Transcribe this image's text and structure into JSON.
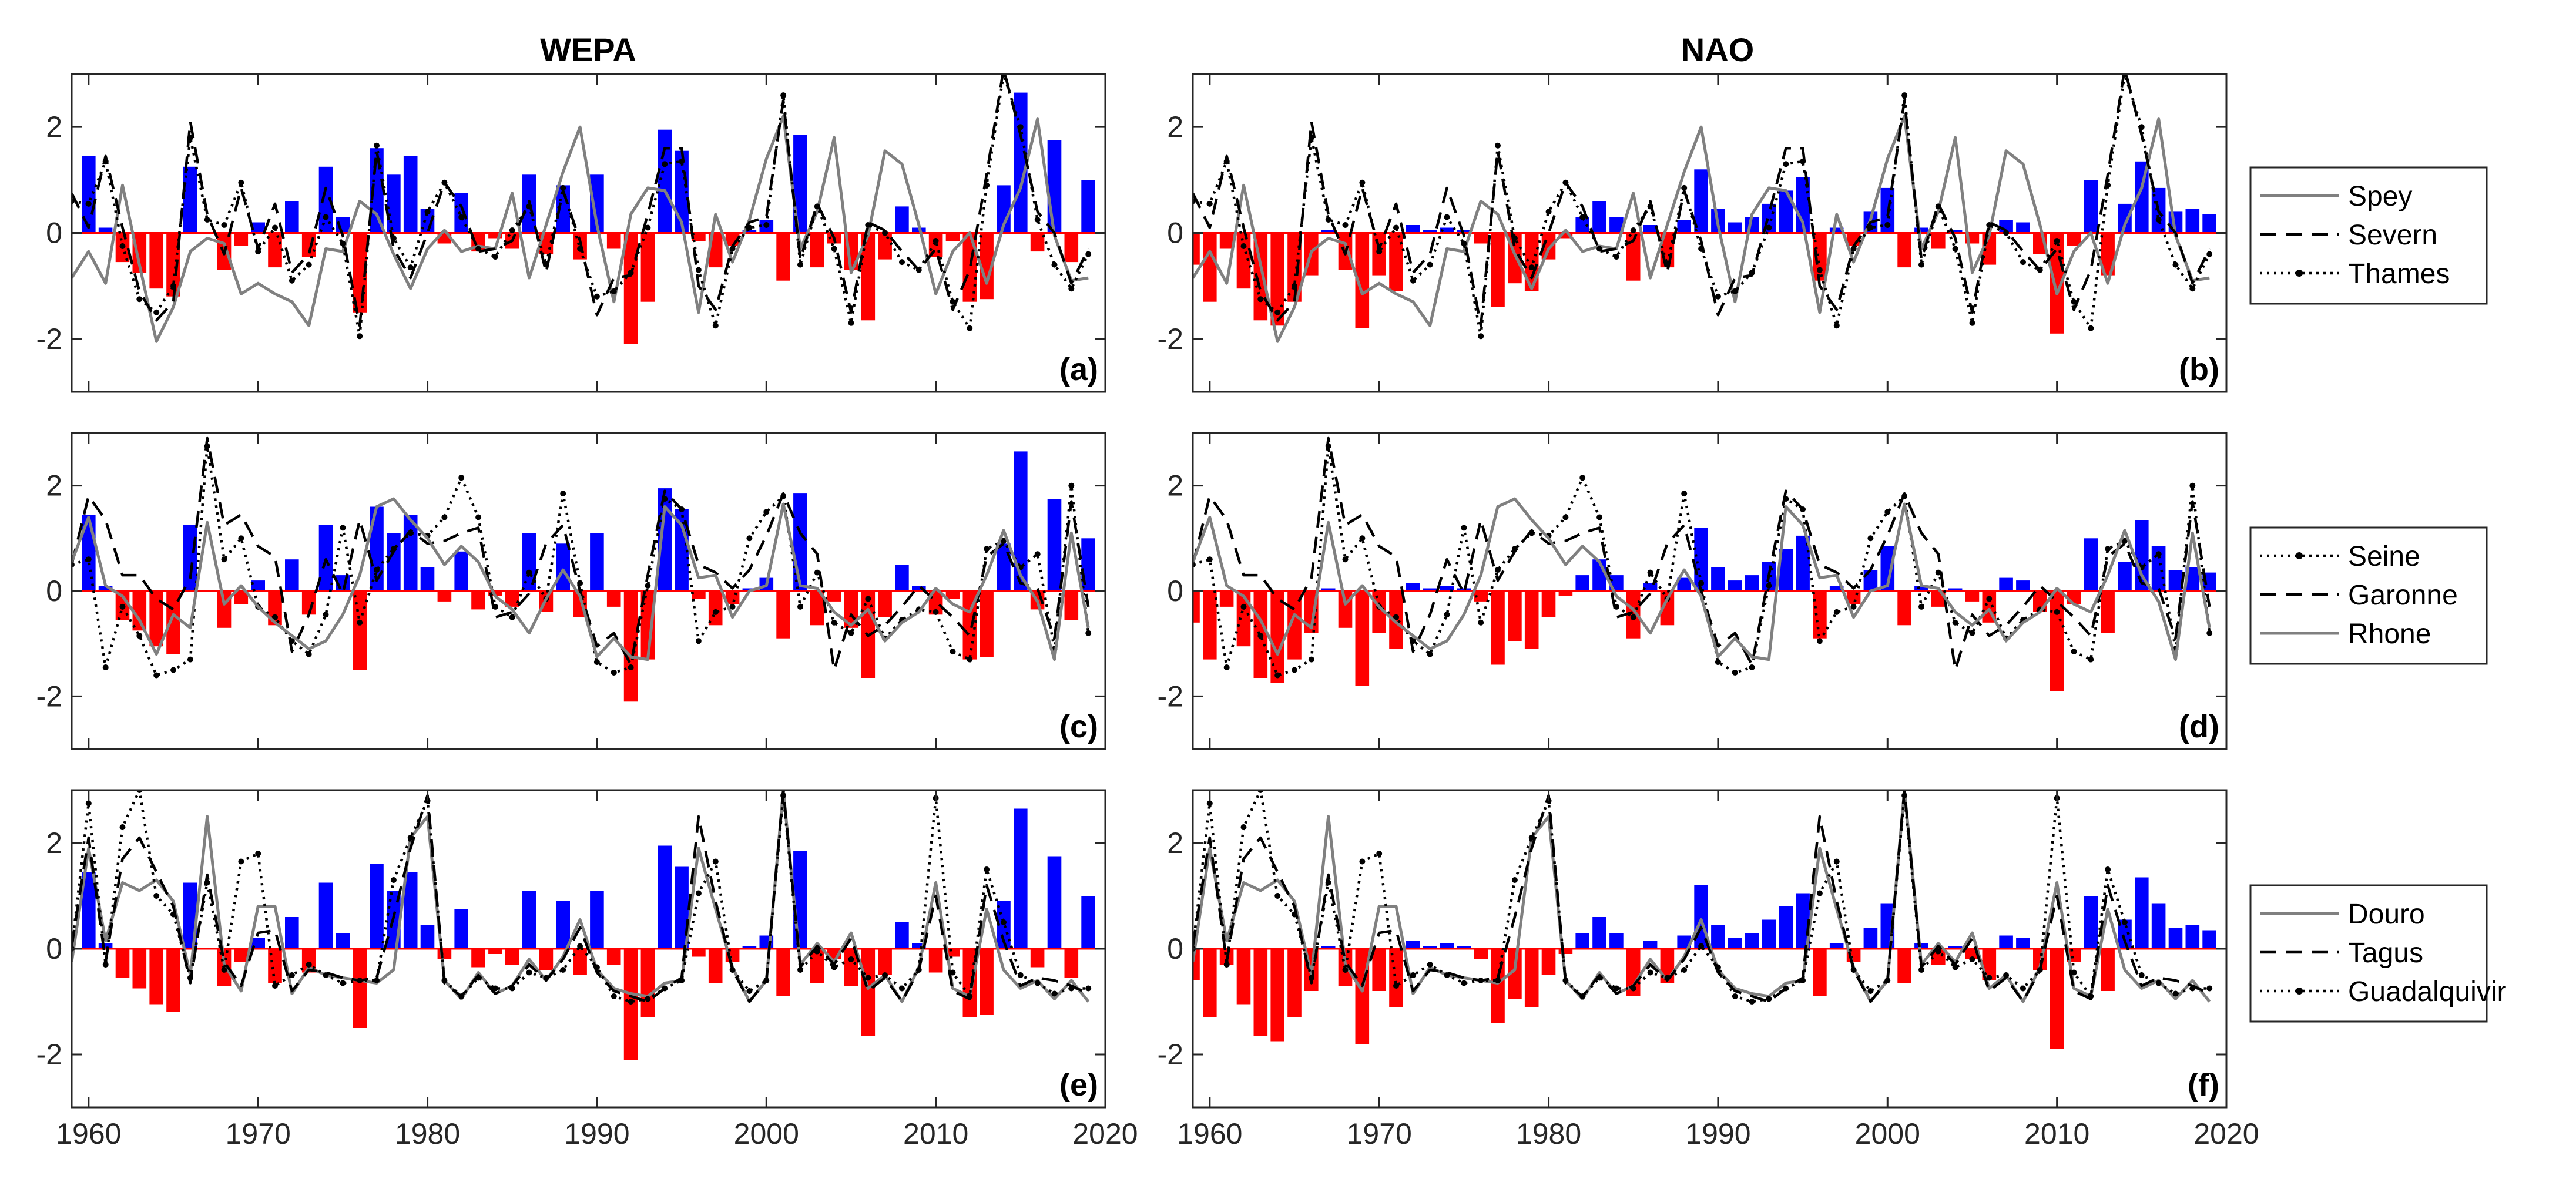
{
  "column_titles": [
    "WEPA",
    "NAO"
  ],
  "indices": {
    "WEPA": {
      "years": [
        1959,
        1960,
        1961,
        1962,
        1963,
        1964,
        1965,
        1966,
        1967,
        1968,
        1969,
        1970,
        1971,
        1972,
        1973,
        1974,
        1975,
        1976,
        1977,
        1978,
        1979,
        1980,
        1981,
        1982,
        1983,
        1984,
        1985,
        1986,
        1987,
        1988,
        1989,
        1990,
        1991,
        1992,
        1993,
        1994,
        1995,
        1996,
        1997,
        1998,
        1999,
        2000,
        2001,
        2002,
        2003,
        2004,
        2005,
        2006,
        2007,
        2008,
        2009,
        2010,
        2011,
        2012,
        2013,
        2014,
        2015,
        2016,
        2017,
        2018,
        2019
      ],
      "values": [
        0.0,
        1.45,
        0.1,
        -0.55,
        -0.75,
        -1.05,
        -1.2,
        1.25,
        0.0,
        -0.7,
        -0.25,
        0.2,
        -0.65,
        0.6,
        -0.45,
        1.25,
        0.3,
        -1.5,
        1.6,
        1.1,
        1.45,
        0.45,
        -0.2,
        0.75,
        -0.35,
        -0.1,
        -0.3,
        1.1,
        -0.4,
        0.9,
        -0.5,
        1.1,
        -0.3,
        -2.1,
        -1.3,
        1.95,
        1.55,
        -0.15,
        -0.65,
        -0.25,
        0.05,
        0.25,
        -0.9,
        1.85,
        -0.65,
        -0.2,
        -0.7,
        -1.65,
        -0.5,
        0.5,
        0.1,
        -0.45,
        -0.15,
        -1.3,
        -1.25,
        0.9,
        2.65,
        -0.35,
        1.75,
        -0.55,
        1.0
      ]
    },
    "NAO": {
      "years": [
        1959,
        1960,
        1961,
        1962,
        1963,
        1964,
        1965,
        1966,
        1967,
        1968,
        1969,
        1970,
        1971,
        1972,
        1973,
        1974,
        1975,
        1976,
        1977,
        1978,
        1979,
        1980,
        1981,
        1982,
        1983,
        1984,
        1985,
        1986,
        1987,
        1988,
        1989,
        1990,
        1991,
        1992,
        1993,
        1994,
        1995,
        1996,
        1997,
        1998,
        1999,
        2000,
        2001,
        2002,
        2003,
        2004,
        2005,
        2006,
        2007,
        2008,
        2009,
        2010,
        2011,
        2012,
        2013,
        2014,
        2015,
        2016,
        2017,
        2018,
        2019
      ],
      "values": [
        -0.6,
        -1.3,
        -0.3,
        -1.05,
        -1.65,
        -1.75,
        -1.3,
        -0.8,
        0.05,
        -0.7,
        -1.8,
        -0.8,
        -1.1,
        0.15,
        0.05,
        0.1,
        0.05,
        -0.2,
        -1.4,
        -0.95,
        -1.1,
        -0.5,
        -0.1,
        0.3,
        0.6,
        0.3,
        -0.9,
        0.15,
        -0.65,
        0.25,
        1.2,
        0.45,
        0.2,
        0.3,
        0.55,
        0.8,
        1.05,
        -0.9,
        0.1,
        -0.25,
        0.4,
        0.85,
        -0.65,
        0.1,
        -0.3,
        0.05,
        -0.2,
        -0.6,
        0.25,
        0.2,
        -0.4,
        -1.9,
        -0.25,
        1.0,
        -0.8,
        0.55,
        1.35,
        0.85,
        0.4,
        0.45,
        0.35
      ]
    }
  },
  "rivers": {
    "Spey": [
      -0.85,
      -0.35,
      -0.95,
      0.9,
      -0.6,
      -2.05,
      -1.4,
      -0.35,
      -0.1,
      -0.2,
      -1.15,
      -0.95,
      -1.15,
      -1.3,
      -1.75,
      -0.3,
      -0.35,
      0.6,
      0.35,
      -0.4,
      -1.05,
      -0.3,
      0.05,
      -0.35,
      -0.25,
      -0.3,
      0.75,
      -0.85,
      0.15,
      1.15,
      2.0,
      0.15,
      -1.3,
      0.35,
      0.85,
      0.8,
      0.2,
      -1.5,
      0.35,
      -0.55,
      0.25,
      1.4,
      2.2,
      -0.3,
      0.4,
      1.8,
      -0.75,
      -0.05,
      1.55,
      1.3,
      0.15,
      -1.15,
      -0.35,
      0.0,
      -0.95,
      0.15,
      0.85,
      2.15,
      -0.05,
      -0.9,
      -0.85
    ],
    "Severn": [
      0.75,
      0.1,
      1.45,
      0.1,
      -1.1,
      -1.65,
      -1.3,
      2.1,
      0.35,
      -0.4,
      0.85,
      -0.3,
      0.55,
      -0.75,
      -0.4,
      0.85,
      -0.05,
      -1.75,
      1.55,
      -0.3,
      -0.85,
      0.0,
      0.95,
      0.5,
      -0.35,
      -0.3,
      -0.15,
      0.6,
      -0.75,
      0.8,
      -0.15,
      -1.55,
      -0.85,
      -0.8,
      0.35,
      1.6,
      1.6,
      -1.0,
      -1.45,
      -0.25,
      0.2,
      0.3,
      2.5,
      -0.5,
      0.55,
      -0.1,
      -1.5,
      0.2,
      0.05,
      -0.35,
      -0.7,
      -0.3,
      -1.45,
      -0.7,
      1.1,
      3.1,
      1.85,
      0.4,
      0.0,
      -0.95,
      -0.3
    ],
    "Thames": [
      0.6,
      0.55,
      1.35,
      -0.25,
      -1.25,
      -1.5,
      -1.0,
      1.8,
      0.25,
      0.15,
      0.95,
      -0.35,
      0.1,
      -0.9,
      -0.6,
      0.3,
      -0.2,
      -1.95,
      1.65,
      -0.1,
      -0.65,
      0.4,
      0.95,
      0.3,
      -0.3,
      -0.45,
      0.05,
      0.5,
      -0.6,
      0.85,
      -0.3,
      -1.2,
      -1.1,
      -0.75,
      0.1,
      1.3,
      1.35,
      -0.7,
      -1.75,
      -0.3,
      0.1,
      0.15,
      2.6,
      -0.6,
      0.5,
      -0.3,
      -1.7,
      0.15,
      0.0,
      -0.55,
      -0.7,
      -0.15,
      -1.3,
      -1.8,
      0.9,
      3.0,
      2.0,
      0.25,
      -0.6,
      -1.05,
      -0.4
    ],
    "Seine": [
      0.5,
      0.6,
      -1.45,
      -0.3,
      -0.85,
      -1.6,
      -1.5,
      -1.3,
      2.75,
      0.6,
      1.0,
      -0.3,
      -0.5,
      -0.95,
      -1.2,
      -0.45,
      1.2,
      -0.6,
      0.4,
      0.8,
      1.1,
      1.05,
      1.4,
      2.15,
      1.4,
      -0.3,
      -0.5,
      0.35,
      -0.15,
      1.85,
      0.15,
      -1.35,
      -1.55,
      -1.45,
      0.1,
      1.75,
      1.55,
      -0.95,
      -0.4,
      -0.3,
      1.0,
      1.5,
      1.8,
      -0.3,
      0.35,
      -0.6,
      -0.8,
      -0.15,
      -0.9,
      -0.55,
      -0.35,
      -0.4,
      -1.15,
      -1.3,
      0.8,
      0.95,
      0.45,
      0.7,
      -1.1,
      2.0,
      -0.8
    ],
    "Garonne": [
      0.5,
      1.8,
      1.35,
      0.3,
      0.3,
      -0.15,
      -0.35,
      0.25,
      2.9,
      1.25,
      1.45,
      0.85,
      0.65,
      -1.15,
      -0.45,
      0.6,
      -0.05,
      1.35,
      0.2,
      0.75,
      1.15,
      0.9,
      0.95,
      1.1,
      1.2,
      -0.5,
      -0.4,
      -0.05,
      0.9,
      1.25,
      0.0,
      -1.05,
      -0.8,
      -1.4,
      0.3,
      1.9,
      1.55,
      0.5,
      0.35,
      0.05,
      0.4,
      1.05,
      1.85,
      1.1,
      0.7,
      -1.5,
      -0.45,
      -0.85,
      -0.65,
      -0.3,
      0.1,
      -0.2,
      -0.5,
      -0.85,
      0.65,
      0.9,
      0.15,
      0.05,
      -0.9,
      1.7,
      -0.3
    ],
    "Rhone": [
      0.55,
      1.4,
      0.1,
      -0.1,
      -0.55,
      -1.2,
      -0.45,
      -0.7,
      1.3,
      -0.25,
      0.1,
      -0.3,
      -0.6,
      -0.85,
      -1.1,
      -0.95,
      -0.45,
      0.3,
      1.6,
      1.75,
      1.35,
      1.0,
      0.5,
      0.85,
      0.55,
      -0.1,
      -0.35,
      -0.8,
      -0.15,
      0.4,
      -0.1,
      -1.25,
      -0.9,
      -1.25,
      -1.3,
      1.6,
      1.25,
      0.25,
      0.3,
      -0.5,
      0.0,
      0.1,
      1.65,
      0.1,
      0.05,
      -0.4,
      -0.65,
      -0.35,
      -0.95,
      -0.6,
      -0.4,
      0.05,
      -0.25,
      -0.4,
      0.3,
      1.15,
      0.3,
      -0.2,
      -1.3,
      1.1,
      -0.7
    ],
    "Douro": [
      -0.25,
      1.9,
      0.15,
      1.25,
      1.1,
      1.3,
      0.9,
      -0.5,
      2.5,
      -0.3,
      -0.8,
      0.8,
      0.8,
      -0.85,
      -0.35,
      -0.5,
      -0.55,
      -0.6,
      -0.65,
      -0.4,
      2.1,
      2.5,
      -0.6,
      -0.95,
      -0.45,
      -0.85,
      -0.7,
      -0.2,
      -0.6,
      -0.15,
      0.55,
      -0.4,
      -0.75,
      -0.85,
      -0.9,
      -0.65,
      -0.6,
      1.9,
      0.75,
      -0.35,
      -1.0,
      -0.6,
      3.0,
      -0.3,
      0.1,
      -0.25,
      0.3,
      -0.75,
      -0.5,
      -1.0,
      -0.35,
      1.25,
      -0.75,
      -0.9,
      0.75,
      -0.4,
      -0.75,
      -0.6,
      -0.95,
      -0.6,
      -1.0
    ],
    "Tagus": [
      0.05,
      2.1,
      -0.25,
      1.7,
      2.1,
      1.45,
      0.8,
      -0.65,
      1.4,
      -0.25,
      -0.7,
      0.3,
      0.35,
      -0.8,
      -0.4,
      -0.45,
      -0.55,
      -0.6,
      -0.55,
      0.6,
      1.9,
      2.9,
      -0.65,
      -0.9,
      -0.5,
      -0.85,
      -0.7,
      -0.3,
      -0.6,
      -0.2,
      0.4,
      -0.45,
      -0.8,
      -0.9,
      -1.0,
      -0.75,
      -0.55,
      2.5,
      0.9,
      -0.4,
      -1.0,
      -0.6,
      3.0,
      -0.35,
      0.05,
      -0.3,
      0.2,
      -0.8,
      -0.55,
      -1.0,
      -0.4,
      1.0,
      -0.8,
      -0.95,
      1.2,
      0.15,
      -0.7,
      -0.55,
      -0.6,
      -0.7,
      -0.85
    ],
    "Guadalquivir": [
      0.0,
      2.75,
      -0.3,
      2.3,
      3.0,
      1.0,
      0.65,
      -0.55,
      1.25,
      -0.4,
      1.65,
      1.8,
      -0.7,
      -0.5,
      -0.3,
      -0.5,
      -0.65,
      -0.6,
      -0.6,
      1.3,
      2.1,
      2.8,
      -0.6,
      -0.9,
      -0.55,
      -0.75,
      -0.75,
      -0.45,
      -0.55,
      -0.4,
      0.05,
      -0.35,
      -0.9,
      -1.0,
      -0.95,
      -0.75,
      -0.6,
      1.05,
      1.65,
      -0.4,
      -0.8,
      -0.6,
      2.9,
      -0.4,
      -0.05,
      -0.35,
      -0.2,
      -0.55,
      -0.5,
      -0.75,
      -0.4,
      2.85,
      -0.45,
      -0.9,
      1.5,
      0.5,
      -0.5,
      -0.65,
      -0.85,
      -0.75,
      -0.75
    ]
  },
  "chart_data": [
    {
      "type": "bar+line",
      "panel_label": "(a)",
      "index": "WEPA",
      "series": [
        "Spey",
        "Severn",
        "Thames"
      ],
      "ylim": [
        -3,
        3
      ],
      "xlim": [
        1959,
        2020
      ]
    },
    {
      "type": "bar+line",
      "panel_label": "(b)",
      "index": "NAO",
      "series": [
        "Spey",
        "Severn",
        "Thames"
      ],
      "ylim": [
        -3,
        3
      ],
      "xlim": [
        1959,
        2020
      ]
    },
    {
      "type": "bar+line",
      "panel_label": "(c)",
      "index": "WEPA",
      "series": [
        "Seine",
        "Garonne",
        "Rhone"
      ],
      "ylim": [
        -3,
        3
      ],
      "xlim": [
        1959,
        2020
      ]
    },
    {
      "type": "bar+line",
      "panel_label": "(d)",
      "index": "NAO",
      "series": [
        "Seine",
        "Garonne",
        "Rhone"
      ],
      "ylim": [
        -3,
        3
      ],
      "xlim": [
        1959,
        2020
      ]
    },
    {
      "type": "bar+line",
      "panel_label": "(e)",
      "index": "WEPA",
      "series": [
        "Douro",
        "Tagus",
        "Guadalquivir"
      ],
      "ylim": [
        -3,
        3
      ],
      "xlim": [
        1959,
        2020
      ]
    },
    {
      "type": "bar+line",
      "panel_label": "(f)",
      "index": "NAO",
      "series": [
        "Douro",
        "Tagus",
        "Guadalquivir"
      ],
      "ylim": [
        -3,
        3
      ],
      "xlim": [
        1959,
        2020
      ]
    }
  ],
  "legends": [
    [
      {
        "name": "Spey",
        "style": "solid",
        "color": "#808080"
      },
      {
        "name": "Severn",
        "style": "dashed",
        "color": "#000000"
      },
      {
        "name": "Thames",
        "style": "dotted",
        "color": "#000000"
      }
    ],
    [
      {
        "name": "Seine",
        "style": "dotted",
        "color": "#000000"
      },
      {
        "name": "Garonne",
        "style": "dashed",
        "color": "#000000"
      },
      {
        "name": "Rhone",
        "style": "solid",
        "color": "#808080"
      }
    ],
    [
      {
        "name": "Douro",
        "style": "solid",
        "color": "#808080"
      },
      {
        "name": "Tagus",
        "style": "dashed",
        "color": "#000000"
      },
      {
        "name": "Guadalquivir",
        "style": "dotted",
        "color": "#000000"
      }
    ]
  ],
  "y_ticks": [
    "-2",
    "0",
    "2"
  ],
  "y_tick_values": [
    -2,
    0,
    2
  ],
  "x_ticks": [
    "1960",
    "1970",
    "1980",
    "1990",
    "2000",
    "2010",
    "2020"
  ],
  "x_tick_values": [
    1960,
    1970,
    1980,
    1990,
    2000,
    2010,
    2020
  ],
  "colors": {
    "positive_bar": "#0000FF",
    "negative_bar": "#FF0000",
    "solid_line": "#808080",
    "black_line": "#000000"
  }
}
